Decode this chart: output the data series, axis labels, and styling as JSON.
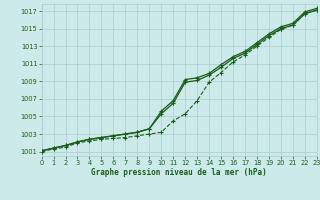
{
  "background_color": "#cceaea",
  "grid_color": "#aacccc",
  "line_color": "#1a5c1a",
  "title": "Graphe pression niveau de la mer (hPa)",
  "xlim": [
    0,
    23
  ],
  "ylim": [
    1000.5,
    1017.8
  ],
  "yticks": [
    1001,
    1003,
    1005,
    1007,
    1009,
    1011,
    1013,
    1015,
    1017
  ],
  "xticks": [
    0,
    1,
    2,
    3,
    4,
    5,
    6,
    7,
    8,
    9,
    10,
    11,
    12,
    13,
    14,
    15,
    16,
    17,
    18,
    19,
    20,
    21,
    22,
    23
  ],
  "line_top": [
    1001.1,
    1001.4,
    1001.7,
    1002.1,
    1002.4,
    1002.6,
    1002.8,
    1003.0,
    1003.2,
    1003.6,
    1005.6,
    1006.8,
    1009.2,
    1009.4,
    1009.9,
    1010.9,
    1011.8,
    1012.4,
    1013.4,
    1014.4,
    1015.2,
    1015.6,
    1016.9,
    1017.3
  ],
  "line_mid": [
    1001.1,
    1001.4,
    1001.7,
    1002.1,
    1002.4,
    1002.6,
    1002.8,
    1003.0,
    1003.2,
    1003.6,
    1005.3,
    1006.5,
    1008.9,
    1009.1,
    1009.7,
    1010.6,
    1011.6,
    1012.2,
    1013.2,
    1014.2,
    1015.0,
    1015.4,
    1016.7,
    1017.1
  ],
  "line_low": [
    1001.0,
    1001.3,
    1001.5,
    1002.0,
    1002.2,
    1002.4,
    1002.5,
    1002.6,
    1002.8,
    1003.0,
    1003.2,
    1004.5,
    1005.3,
    1006.8,
    1008.9,
    1010.0,
    1011.2,
    1012.0,
    1013.0,
    1014.0,
    1014.9,
    1015.4,
    1016.7,
    1017.1
  ]
}
